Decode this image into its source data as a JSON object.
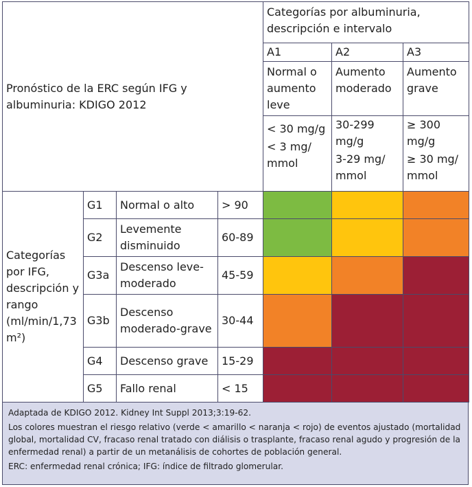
{
  "corner_title": "Pronóstico de la ERC según IFG y albuminuria: KDIGO 2012",
  "albuminuria": {
    "header": "Categorías por albuminuria, descripción e intervalo",
    "columns": [
      {
        "code": "A1",
        "description": "Normal o aumento leve",
        "range_mg_g": "< 30 mg/g",
        "range_mg_mmol": "< 3 mg/ mmol"
      },
      {
        "code": "A2",
        "description": "Aumento moderado",
        "range_mg_g": "30-299 mg/g",
        "range_mg_mmol": "3-29 mg/ mmol"
      },
      {
        "code": "A3",
        "description": "Aumento grave",
        "range_mg_g": "≥ 300 mg/g",
        "range_mg_mmol": "≥ 30 mg/ mmol"
      }
    ]
  },
  "ifg": {
    "header": "Categorías por IFG, descripción y rango (ml/min/1,73 m²)",
    "rows": [
      {
        "code": "G1",
        "description": "Normal o alto",
        "range": "> 90",
        "risk": [
          "low",
          "moderate",
          "high"
        ]
      },
      {
        "code": "G2",
        "description": "Levemente disminuido",
        "range": "60-89",
        "risk": [
          "low",
          "moderate",
          "high"
        ]
      },
      {
        "code": "G3a",
        "description": "Descenso leve-moderado",
        "range": "45-59",
        "risk": [
          "moderate",
          "high",
          "very_high"
        ]
      },
      {
        "code": "G3b",
        "description": "Descenso moderado-grave",
        "range": "30-44",
        "risk": [
          "high",
          "very_high",
          "very_high"
        ]
      },
      {
        "code": "G4",
        "description": "Descenso grave",
        "range": "15-29",
        "risk": [
          "very_high",
          "very_high",
          "very_high"
        ]
      },
      {
        "code": "G5",
        "description": "Fallo renal",
        "range": "< 15",
        "risk": [
          "very_high",
          "very_high",
          "very_high"
        ]
      }
    ]
  },
  "risk_colors": {
    "low": "#7dbb42",
    "moderate": "#ffc50d",
    "high": "#f28227",
    "very_high": "#9c1f35"
  },
  "notes": {
    "source": "Adaptada de KDIGO 2012. Kidney Int Suppl 2013;3:19-62.",
    "colors": "Los colores muestran el riesgo relativo (verde < amarillo < naranja < rojo) de eventos ajustado (mortalidad global, mortalidad CV, fracaso renal tratado con diálisis o trasplante, fracaso renal agudo y progresión de la enfermedad renal) a partir de un metanálisis de cohortes de población general.",
    "abbreviations": "ERC: enfermedad renal crónica; IFG: índice de filtrado glomerular."
  }
}
